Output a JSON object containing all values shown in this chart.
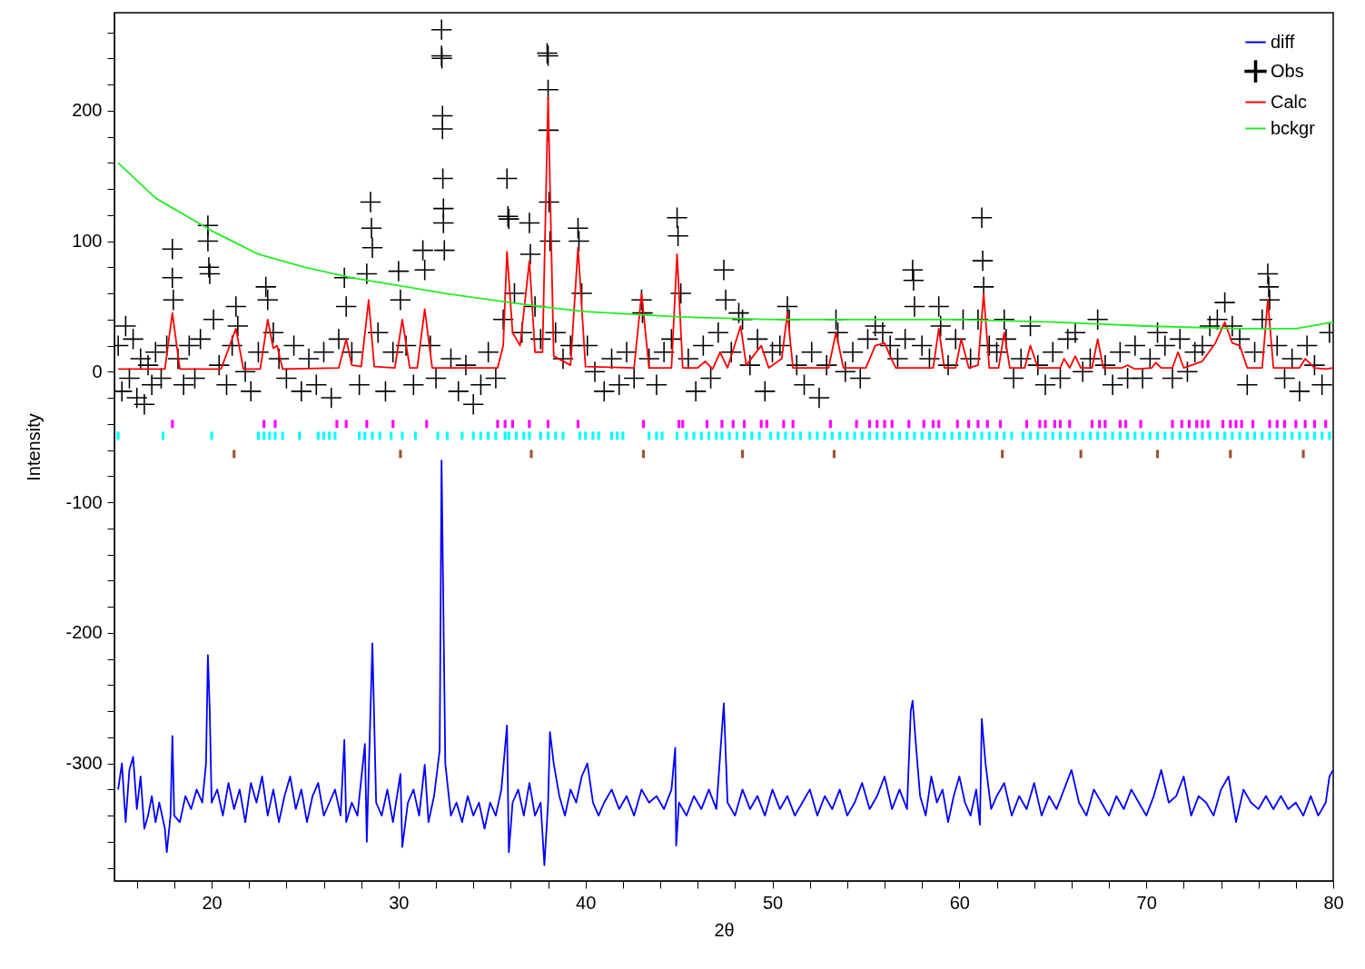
{
  "chart_data": {
    "type": "line",
    "xlabel": "2θ",
    "ylabel": "Intensity",
    "xlim": [
      14.8,
      80
    ],
    "ylim": [
      -390,
      275
    ],
    "legend": "top right",
    "xticks": [
      {
        "value": 16,
        "label": null
      },
      {
        "value": 18,
        "label": null
      },
      20,
      {
        "value": 22,
        "label": null
      },
      {
        "value": 24,
        "label": null
      },
      {
        "value": 26,
        "label": null
      },
      {
        "value": 28,
        "label": null
      },
      30,
      {
        "value": 32,
        "label": null
      },
      {
        "value": 34,
        "label": null
      },
      {
        "value": 36,
        "label": null
      },
      {
        "value": 38,
        "label": null
      },
      40,
      {
        "value": 42,
        "label": null
      },
      {
        "value": 44,
        "label": null
      },
      {
        "value": 46,
        "label": null
      },
      {
        "value": 48,
        "label": null
      },
      50,
      {
        "value": 52,
        "label": null
      },
      {
        "value": 54,
        "label": null
      },
      {
        "value": 56,
        "label": null
      },
      {
        "value": 58,
        "label": null
      },
      60,
      {
        "value": 62,
        "label": null
      },
      {
        "value": 64,
        "label": null
      },
      {
        "value": 66,
        "label": null
      },
      {
        "value": 68,
        "label": null
      },
      70,
      {
        "value": 72,
        "label": null
      },
      {
        "value": 74,
        "label": null
      },
      {
        "value": 76,
        "label": null
      },
      {
        "value": 78,
        "label": null
      },
      80
    ],
    "yticks": [
      {
        "value": -380,
        "label": null
      },
      {
        "value": -360,
        "label": null
      },
      {
        "value": -340,
        "label": null
      },
      {
        "value": -320,
        "label": null
      },
      -300,
      {
        "value": -280,
        "label": null
      },
      {
        "value": -260,
        "label": null
      },
      {
        "value": -240,
        "label": null
      },
      {
        "value": -220,
        "label": null
      },
      -200,
      {
        "value": -180,
        "label": null
      },
      {
        "value": -160,
        "label": null
      },
      {
        "value": -140,
        "label": null
      },
      {
        "value": -120,
        "label": null
      },
      -100,
      {
        "value": -80,
        "label": null
      },
      {
        "value": -60,
        "label": null
      },
      {
        "value": -40,
        "label": null
      },
      {
        "value": -20,
        "label": null
      },
      0,
      {
        "value": 20,
        "label": null
      },
      {
        "value": 40,
        "label": null
      },
      {
        "value": 60,
        "label": null
      },
      {
        "value": 80,
        "label": null
      },
      100,
      {
        "value": 120,
        "label": null
      },
      {
        "value": 140,
        "label": null
      },
      {
        "value": 160,
        "label": null
      },
      {
        "value": 180,
        "label": null
      },
      200,
      {
        "value": 220,
        "label": null
      },
      {
        "value": 240,
        "label": null
      },
      {
        "value": 260,
        "label": null
      }
    ],
    "series": [
      {
        "name": "diff",
        "color": "#0000ff",
        "x": [
          15.0,
          15.2,
          15.4,
          15.6,
          15.8,
          16.0,
          16.2,
          16.4,
          16.6,
          16.8,
          17.0,
          17.2,
          17.5,
          17.6,
          17.8,
          17.9,
          18.0,
          18.3,
          18.6,
          18.9,
          19.2,
          19.5,
          19.7,
          19.8,
          19.9,
          20.0,
          20.3,
          20.6,
          20.9,
          21.2,
          21.5,
          21.8,
          22.1,
          22.4,
          22.7,
          23.0,
          23.3,
          23.6,
          23.9,
          24.2,
          24.5,
          24.8,
          25.1,
          25.4,
          25.7,
          26.0,
          26.3,
          26.6,
          26.9,
          27.1,
          27.2,
          27.5,
          27.8,
          28.2,
          28.3,
          28.6,
          28.8,
          29.1,
          29.4,
          29.7,
          30.1,
          30.2,
          30.5,
          30.8,
          31.1,
          31.4,
          31.6,
          31.9,
          32.2,
          32.3,
          32.5,
          32.8,
          33.1,
          33.4,
          33.7,
          34.0,
          34.3,
          34.6,
          34.9,
          35.2,
          35.5,
          35.8,
          35.9,
          36.1,
          36.4,
          36.7,
          37.0,
          37.3,
          37.6,
          37.8,
          38.0,
          38.1,
          38.3,
          38.6,
          38.9,
          39.2,
          39.5,
          39.8,
          40.1,
          40.4,
          40.7,
          41.0,
          41.4,
          41.8,
          42.2,
          42.6,
          43.0,
          43.4,
          43.8,
          44.2,
          44.6,
          44.8,
          44.85,
          45.0,
          45.4,
          45.8,
          46.2,
          46.6,
          47.0,
          47.4,
          47.6,
          48.0,
          48.4,
          48.8,
          49.2,
          49.6,
          50.0,
          50.4,
          50.8,
          51.2,
          51.6,
          52.0,
          52.4,
          52.8,
          53.2,
          53.6,
          54.0,
          54.4,
          54.8,
          55.2,
          55.6,
          56.0,
          56.4,
          56.8,
          57.2,
          57.4,
          57.5,
          57.7,
          57.9,
          58.2,
          58.5,
          58.8,
          59.1,
          59.4,
          59.7,
          60.0,
          60.3,
          60.6,
          60.9,
          61.1,
          61.2,
          61.4,
          61.7,
          62.0,
          62.4,
          62.8,
          63.2,
          63.6,
          64.0,
          64.4,
          64.8,
          65.2,
          65.6,
          66.0,
          66.4,
          66.8,
          67.2,
          67.6,
          68.0,
          68.4,
          68.8,
          69.2,
          69.6,
          70.0,
          70.4,
          70.8,
          71.2,
          71.6,
          72.0,
          72.4,
          72.8,
          73.2,
          73.6,
          74.0,
          74.4,
          74.8,
          75.2,
          75.6,
          76.0,
          76.4,
          76.8,
          77.2,
          77.6,
          78.0,
          78.4,
          78.8,
          79.2,
          79.6,
          79.8,
          80.0
        ],
        "values": [
          -320,
          -300,
          -345,
          -305,
          -295,
          -335,
          -310,
          -350,
          -340,
          -325,
          -345,
          -330,
          -350,
          -368,
          -340,
          -279,
          -340,
          -345,
          -325,
          -335,
          -320,
          -330,
          -300,
          -217,
          -260,
          -330,
          -320,
          -340,
          -315,
          -335,
          -320,
          -345,
          -315,
          -330,
          -310,
          -340,
          -320,
          -345,
          -325,
          -310,
          -335,
          -320,
          -345,
          -325,
          -315,
          -340,
          -330,
          -320,
          -340,
          -282,
          -345,
          -330,
          -340,
          -285,
          -360,
          -208,
          -330,
          -340,
          -320,
          -345,
          -308,
          -364,
          -330,
          -320,
          -340,
          -301,
          -345,
          -325,
          -290,
          -68,
          -300,
          -340,
          -330,
          -345,
          -325,
          -340,
          -330,
          -350,
          -330,
          -340,
          -320,
          -271,
          -368,
          -330,
          -320,
          -340,
          -315,
          -340,
          -330,
          -378,
          -330,
          -276,
          -300,
          -325,
          -340,
          -320,
          -330,
          -310,
          -300,
          -330,
          -340,
          -330,
          -320,
          -335,
          -325,
          -340,
          -320,
          -330,
          -325,
          -335,
          -320,
          -288,
          -363,
          -330,
          -340,
          -325,
          -335,
          -320,
          -335,
          -254,
          -330,
          -340,
          -320,
          -335,
          -325,
          -340,
          -320,
          -335,
          -325,
          -340,
          -330,
          -320,
          -340,
          -325,
          -335,
          -320,
          -340,
          -330,
          -315,
          -335,
          -325,
          -310,
          -335,
          -320,
          -335,
          -260,
          -252,
          -290,
          -325,
          -340,
          -310,
          -330,
          -320,
          -345,
          -325,
          -310,
          -330,
          -340,
          -320,
          -347,
          -266,
          -300,
          -335,
          -325,
          -315,
          -340,
          -325,
          -335,
          -315,
          -340,
          -325,
          -335,
          -320,
          -305,
          -330,
          -340,
          -320,
          -330,
          -340,
          -325,
          -335,
          -320,
          -330,
          -340,
          -325,
          -305,
          -330,
          -325,
          -310,
          -340,
          -325,
          -330,
          -340,
          -320,
          -310,
          -345,
          -320,
          -330,
          -335,
          -325,
          -335,
          -325,
          -335,
          -330,
          -340,
          -325,
          -340,
          -330,
          -310,
          -305
        ]
      },
      {
        "name": "Obs",
        "type": "scatter",
        "marker": "cross",
        "color": "#000000",
        "x": [
          15.0,
          15.2,
          15.4,
          15.6,
          15.8,
          16.0,
          16.2,
          16.4,
          16.6,
          16.8,
          17.0,
          17.3,
          17.6,
          17.9,
          17.9,
          17.95,
          18.2,
          18.5,
          18.8,
          19.1,
          19.4,
          19.8,
          19.8,
          19.85,
          19.9,
          20.1,
          20.4,
          20.8,
          21.1,
          21.3,
          21.4,
          21.8,
          22.1,
          22.5,
          22.9,
          23.0,
          23.3,
          23.6,
          24.0,
          24.4,
          24.8,
          25.2,
          25.6,
          26.0,
          26.4,
          26.8,
          27.1,
          27.2,
          27.5,
          27.9,
          28.3,
          28.5,
          28.55,
          28.6,
          28.9,
          29.3,
          29.7,
          30.0,
          30.1,
          30.4,
          30.8,
          31.3,
          31.4,
          31.7,
          32.0,
          32.3,
          32.3,
          32.32,
          32.35,
          32.35,
          32.37,
          32.4,
          32.4,
          32.45,
          32.8,
          33.2,
          33.6,
          34.0,
          34.4,
          34.8,
          35.2,
          35.6,
          35.8,
          35.85,
          35.9,
          36.2,
          36.6,
          37.0,
          37.05,
          37.3,
          37.6,
          37.95,
          38.0,
          38.0,
          38.02,
          38.05,
          38.1,
          38.4,
          38.8,
          39.2,
          39.6,
          39.65,
          39.8,
          40.1,
          40.5,
          41.0,
          41.4,
          41.8,
          42.2,
          42.6,
          43.0,
          43.05,
          43.4,
          43.8,
          44.2,
          44.6,
          44.9,
          44.95,
          45.1,
          45.5,
          45.9,
          46.3,
          46.7,
          47.1,
          47.4,
          47.5,
          47.8,
          48.2,
          48.4,
          48.8,
          49.2,
          49.6,
          50.0,
          50.4,
          50.8,
          50.9,
          51.3,
          51.7,
          52.1,
          52.5,
          52.9,
          53.4,
          53.5,
          53.9,
          54.3,
          54.7,
          55.1,
          55.5,
          55.9,
          56.3,
          56.7,
          57.1,
          57.5,
          57.55,
          57.6,
          58.0,
          58.4,
          58.9,
          59.0,
          59.4,
          59.8,
          60.2,
          60.6,
          61.0,
          61.2,
          61.25,
          61.3,
          61.6,
          62.0,
          62.4,
          62.5,
          62.9,
          63.3,
          63.8,
          64.2,
          64.6,
          65.0,
          65.4,
          65.8,
          66.2,
          66.6,
          67.0,
          67.4,
          67.8,
          68.2,
          68.6,
          69.0,
          69.4,
          69.8,
          70.2,
          70.6,
          71.0,
          71.4,
          71.8,
          72.2,
          72.6,
          73.0,
          73.4,
          73.8,
          74.2,
          74.6,
          75.0,
          75.4,
          75.8,
          76.2,
          76.5,
          76.55,
          76.6,
          77.0,
          77.4,
          77.8,
          78.2,
          78.6,
          79.0,
          79.4,
          79.8
        ],
        "values": [
          20,
          -15,
          35,
          -5,
          25,
          -20,
          10,
          -25,
          5,
          -10,
          15,
          -5,
          20,
          94,
          72,
          55,
          10,
          -10,
          20,
          -5,
          25,
          112,
          100,
          80,
          75,
          40,
          5,
          -10,
          20,
          50,
          35,
          0,
          -15,
          15,
          65,
          55,
          30,
          10,
          -5,
          20,
          -15,
          10,
          -10,
          15,
          -20,
          25,
          72,
          50,
          15,
          -10,
          75,
          130,
          110,
          95,
          30,
          -15,
          15,
          77,
          55,
          20,
          -10,
          93,
          78,
          20,
          -5,
          262,
          242,
          240,
          196,
          186,
          148,
          125,
          114,
          93,
          10,
          -15,
          5,
          -25,
          -10,
          15,
          -5,
          40,
          148,
          119,
          117,
          60,
          30,
          114,
          90,
          50,
          25,
          244,
          242,
          216,
          185,
          130,
          100,
          30,
          10,
          20,
          110,
          100,
          60,
          20,
          0,
          -15,
          10,
          -10,
          15,
          -5,
          55,
          45,
          10,
          -10,
          15,
          25,
          118,
          104,
          60,
          10,
          -15,
          20,
          -5,
          30,
          78,
          55,
          15,
          45,
          40,
          5,
          25,
          -15,
          15,
          20,
          50,
          40,
          5,
          -10,
          15,
          -20,
          5,
          40,
          30,
          0,
          15,
          -5,
          25,
          35,
          30,
          20,
          10,
          25,
          78,
          70,
          50,
          20,
          10,
          50,
          35,
          5,
          25,
          40,
          10,
          40,
          118,
          85,
          65,
          20,
          15,
          40,
          25,
          -5,
          10,
          35,
          5,
          -10,
          15,
          -5,
          25,
          30,
          0,
          10,
          40,
          5,
          -10,
          15,
          -5,
          20,
          -5,
          10,
          30,
          20,
          -5,
          25,
          0,
          15,
          20,
          35,
          40,
          53,
          35,
          25,
          -10,
          15,
          40,
          75,
          65,
          55,
          20,
          -5,
          10,
          -15,
          20,
          5,
          -10,
          30
        ]
      },
      {
        "name": "Calc",
        "color": "#ff0000",
        "x": [
          15,
          17.5,
          17.9,
          18.3,
          20.5,
          21.3,
          21.7,
          22.6,
          23.0,
          23.3,
          23.5,
          23.8,
          26.8,
          27.2,
          27.5,
          28.0,
          28.4,
          28.7,
          29.8,
          30.2,
          30.6,
          31.0,
          31.4,
          31.8,
          35.3,
          35.6,
          35.8,
          36.1,
          36.5,
          37.0,
          37.3,
          37.7,
          38.0,
          38.3,
          39.2,
          39.6,
          40.0,
          42.6,
          43.0,
          43.4,
          44.6,
          44.9,
          45.2,
          46.0,
          46.4,
          46.8,
          47.2,
          47.6,
          48.3,
          48.6,
          49.4,
          49.8,
          50.5,
          50.8,
          51.1,
          53.0,
          53.4,
          53.8,
          55.0,
          55.5,
          56.0,
          56.3,
          56.6,
          58.6,
          58.9,
          59.2,
          59.8,
          60.1,
          60.5,
          61.0,
          61.3,
          61.6,
          62.1,
          62.4,
          62.7,
          63.5,
          63.8,
          64.2,
          65.4,
          65.6,
          65.9,
          66.2,
          66.5,
          67.1,
          67.4,
          67.7,
          68.7,
          69.0,
          69.4,
          70.3,
          70.5,
          70.8,
          71.4,
          71.7,
          72.0,
          73.0,
          73.2,
          73.7,
          74.2,
          74.6,
          75.0,
          75.4,
          76.2,
          76.5,
          76.8,
          78.2,
          78.5,
          79.0,
          79.6,
          80
        ],
        "values": [
          2,
          2,
          45,
          2,
          2,
          33,
          2,
          2,
          40,
          18,
          20,
          2,
          3,
          25,
          5,
          4,
          55,
          4,
          3,
          40,
          3,
          3,
          48,
          3,
          3,
          20,
          92,
          30,
          20,
          85,
          15,
          15,
          210,
          12,
          5,
          95,
          4,
          3,
          60,
          3,
          3,
          90,
          3,
          3,
          8,
          2,
          15,
          3,
          35,
          5,
          20,
          3,
          10,
          45,
          3,
          3,
          30,
          3,
          3,
          20,
          22,
          12,
          3,
          3,
          33,
          3,
          3,
          25,
          3,
          5,
          60,
          3,
          3,
          30,
          3,
          3,
          20,
          3,
          3,
          10,
          3,
          12,
          3,
          3,
          25,
          3,
          3,
          5,
          2,
          3,
          7,
          3,
          3,
          15,
          3,
          8,
          12,
          22,
          38,
          22,
          20,
          3,
          3,
          55,
          3,
          3,
          10,
          3,
          2,
          3
        ]
      },
      {
        "name": "bckgr",
        "color": "#22ee22",
        "x": [
          15,
          17,
          20,
          22.5,
          25,
          27.5,
          30,
          32.5,
          35,
          37.5,
          40,
          45,
          50,
          55,
          60,
          65,
          70,
          75,
          78,
          80
        ],
        "values": [
          160,
          133,
          108,
          90,
          80,
          72,
          66,
          60,
          55,
          50,
          46,
          42,
          40,
          40,
          40,
          38,
          35,
          33,
          33,
          38
        ]
      },
      {
        "type": "scatter",
        "color": "#ff00ff",
        "x": [
          17.9,
          22.8,
          23.4,
          26.7,
          27.2,
          28.3,
          29.7,
          31.5,
          35.3,
          35.7,
          36.1,
          37.0,
          38.0,
          39.6,
          43.1,
          45.0,
          45.2,
          46.5,
          47.3,
          47.9,
          48.5,
          49.4,
          49.7,
          50.6,
          51.1,
          53.1,
          54.5,
          55.2,
          55.6,
          56.0,
          56.4,
          57.3,
          58.1,
          58.6,
          58.9,
          59.9,
          60.5,
          61.0,
          61.5,
          62.2,
          63.6,
          64.3,
          64.6,
          65.1,
          65.4,
          65.9,
          67.1,
          67.5,
          67.8,
          68.6,
          68.9,
          69.7,
          71.4,
          71.9,
          72.3,
          72.7,
          73.0,
          73.3,
          74.1,
          74.5,
          74.8,
          75.1,
          75.7,
          76.6,
          77.0,
          77.4,
          78.0,
          78.5,
          79.0,
          79.6
        ],
        "values": [
          -40,
          -40,
          -40,
          -40,
          -40,
          -40,
          -40,
          -40,
          -40,
          -40,
          -40,
          -40,
          -40,
          -40,
          -40,
          -40,
          -40,
          -40,
          -40,
          -40,
          -40,
          -40,
          -40,
          -40,
          -40,
          -40,
          -40,
          -40,
          -40,
          -40,
          -40,
          -40,
          -40,
          -40,
          -40,
          -40,
          -40,
          -40,
          -40,
          -40,
          -40,
          -40,
          -40,
          -40,
          -40,
          -40,
          -40,
          -40,
          -40,
          -40,
          -40,
          -40,
          -40,
          -40,
          -40,
          -40,
          -40,
          -40,
          -40,
          -40,
          -40,
          -40,
          -40,
          -40,
          -40,
          -40,
          -40,
          -40,
          -40,
          -40
        ]
      },
      {
        "type": "scatter",
        "color": "#00ffff",
        "x": [
          15.0,
          17.4,
          20.0,
          22.5,
          22.8,
          23.1,
          23.4,
          23.8,
          24.7,
          25.7,
          26.0,
          26.3,
          26.6,
          27.9,
          28.2,
          28.6,
          29.0,
          29.6,
          30.2,
          30.9,
          32.1,
          32.6,
          33.4,
          34.0,
          34.4,
          34.8,
          35.2,
          35.7,
          35.9,
          36.3,
          36.7,
          37.0,
          37.6,
          38.0,
          38.4,
          38.8,
          39.7,
          40.0,
          40.4,
          40.7,
          41.4,
          41.7,
          42.0,
          43.4,
          43.8,
          44.1,
          44.9,
          45.4,
          45.8,
          46.2,
          46.6,
          47.0,
          47.3,
          47.7,
          48.1,
          48.5,
          48.9,
          49.3,
          49.9,
          50.3,
          50.7,
          51.1,
          51.5,
          52.0,
          52.4,
          52.8,
          53.2,
          53.6,
          54.0,
          54.4,
          54.8,
          55.2,
          55.6,
          56.0,
          56.4,
          56.8,
          57.2,
          57.6,
          58.0,
          58.4,
          58.8,
          59.2,
          59.6,
          60.0,
          60.4,
          60.8,
          61.2,
          61.6,
          62.0,
          62.4,
          62.8,
          63.4,
          63.8,
          64.2,
          64.6,
          65.0,
          65.4,
          65.8,
          66.2,
          66.6,
          67.0,
          67.4,
          67.8,
          68.2,
          68.6,
          69.0,
          69.4,
          69.8,
          70.2,
          70.6,
          71.0,
          71.4,
          71.8,
          72.2,
          72.6,
          73.0,
          73.4,
          73.8,
          74.2,
          74.6,
          75.0,
          75.4,
          75.8,
          76.2,
          76.6,
          77.0,
          77.4,
          77.8,
          78.2,
          78.6,
          79.0,
          79.4,
          79.8
        ],
        "values": [
          -49,
          -49,
          -49,
          -49,
          -49,
          -49,
          -49,
          -49,
          -49,
          -49,
          -49,
          -49,
          -49,
          -49,
          -49,
          -49,
          -49,
          -49,
          -49,
          -49,
          -49,
          -49,
          -49,
          -49,
          -49,
          -49,
          -49,
          -49,
          -49,
          -49,
          -49,
          -49,
          -49,
          -49,
          -49,
          -49,
          -49,
          -49,
          -49,
          -49,
          -49,
          -49,
          -49,
          -49,
          -49,
          -49,
          -49,
          -49,
          -49,
          -49,
          -49,
          -49,
          -49,
          -49,
          -49,
          -49,
          -49,
          -49,
          -49,
          -49,
          -49,
          -49,
          -49,
          -49,
          -49,
          -49,
          -49,
          -49,
          -49,
          -49,
          -49,
          -49,
          -49,
          -49,
          -49,
          -49,
          -49,
          -49,
          -49,
          -49,
          -49,
          -49,
          -49,
          -49,
          -49,
          -49,
          -49,
          -49,
          -49,
          -49,
          -49,
          -49,
          -49,
          -49,
          -49,
          -49,
          -49,
          -49,
          -49,
          -49,
          -49,
          -49,
          -49,
          -49,
          -49,
          -49,
          -49,
          -49,
          -49,
          -49,
          -49,
          -49,
          -49,
          -49,
          -49,
          -49,
          -49,
          -49,
          -49,
          -49,
          -49,
          -49,
          -49,
          -49,
          -49,
          -49,
          -49,
          -49,
          -49,
          -49,
          -49,
          -49,
          -49
        ]
      },
      {
        "type": "scatter",
        "color": "#a0522d",
        "x": [
          21.2,
          30.1,
          37.1,
          43.1,
          48.4,
          53.3,
          62.3,
          66.5,
          70.6,
          74.5,
          78.4
        ],
        "values": [
          -63,
          -63,
          -63,
          -63,
          -63,
          -63,
          -63,
          -63,
          -63,
          -63,
          -63
        ]
      }
    ]
  }
}
